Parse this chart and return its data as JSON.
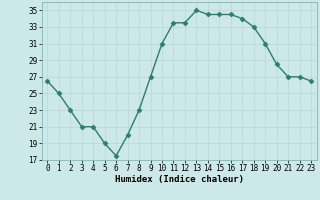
{
  "x": [
    0,
    1,
    2,
    3,
    4,
    5,
    6,
    7,
    8,
    9,
    10,
    11,
    12,
    13,
    14,
    15,
    16,
    17,
    18,
    19,
    20,
    21,
    22,
    23
  ],
  "y": [
    26.5,
    25.0,
    23.0,
    21.0,
    21.0,
    19.0,
    17.5,
    20.0,
    23.0,
    27.0,
    31.0,
    33.5,
    33.5,
    35.0,
    34.5,
    34.5,
    34.5,
    34.0,
    33.0,
    31.0,
    28.5,
    27.0,
    27.0,
    26.5
  ],
  "xlabel": "Humidex (Indice chaleur)",
  "xlim": [
    -0.5,
    23.5
  ],
  "ylim": [
    17,
    36
  ],
  "yticks": [
    17,
    19,
    21,
    23,
    25,
    27,
    29,
    31,
    33,
    35
  ],
  "xticks": [
    0,
    1,
    2,
    3,
    4,
    5,
    6,
    7,
    8,
    9,
    10,
    11,
    12,
    13,
    14,
    15,
    16,
    17,
    18,
    19,
    20,
    21,
    22,
    23
  ],
  "line_color": "#2e7d6e",
  "marker": "D",
  "marker_size": 2.5,
  "bg_color": "#cce8e8",
  "grid_color": "#b8d8d8",
  "axis_fontsize": 6.5,
  "tick_fontsize": 5.5,
  "line_width": 1.0
}
